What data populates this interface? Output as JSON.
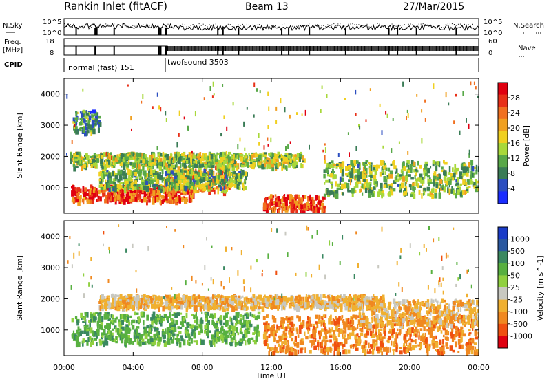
{
  "header": {
    "station": "Rankin Inlet (fitACF)",
    "beam": "Beam 13",
    "date": "27/Mar/2015"
  },
  "top_panels": {
    "nsky_label": "N.Sky",
    "nsearch_label": "N.Search",
    "freq_label_line1": "Freq.",
    "freq_label_line2": "[MHz]",
    "nave_label": "Nave",
    "cpid_label": "CPID",
    "noise_ticks_left": [
      "10^5",
      "10^0"
    ],
    "noise_ticks_right": [
      "10^5",
      "10^0"
    ],
    "freq_ticks": [
      "18",
      "8"
    ],
    "nave_ticks": [
      "60",
      "0"
    ],
    "cpid_segments": [
      {
        "label": "normal (fast) 151",
        "start_hour": 0.0,
        "end_hour": 6.0
      },
      {
        "label": "twofsound 3503",
        "start_hour": 6.0,
        "end_hour": 24.0
      }
    ]
  },
  "x_axis": {
    "label": "Time UT",
    "ticks": [
      "00:00",
      "04:00",
      "08:00",
      "12:00",
      "16:00",
      "20:00",
      "00:00"
    ],
    "range_hours": [
      0,
      24
    ]
  },
  "chart_data": [
    {
      "type": "heatmap",
      "ylabel": "Slant Range [km]",
      "yticks": [
        "1000",
        "2000",
        "3000",
        "4000"
      ],
      "ylim": [
        180,
        4500
      ],
      "colorbar_label": "Power [dB]",
      "colorbar_ticks": [
        "4",
        "8",
        "12",
        "16",
        "20",
        "24",
        "28"
      ],
      "colorbar_range": [
        0,
        32
      ],
      "colorbar_colors": [
        "#1a2cff",
        "#2c4ec0",
        "#3a7c56",
        "#58a848",
        "#a8d83a",
        "#f0d020",
        "#f0a020",
        "#f07020",
        "#e83018",
        "#e00010"
      ],
      "bands": [
        {
          "name": "near",
          "range_lo_km": 600,
          "range_hi_km": 1100,
          "start_hour": 0.4,
          "end_hour": 7.5,
          "level_db": 26
        },
        {
          "name": "near-mid",
          "range_lo_km": 900,
          "range_hi_km": 1700,
          "start_hour": 5.8,
          "end_hour": 9.5,
          "level_db": 22
        },
        {
          "name": "upper",
          "range_lo_km": 1700,
          "range_hi_km": 2150,
          "start_hour": 0.3,
          "end_hour": 13.8,
          "level_db": 14
        },
        {
          "name": "mid",
          "range_lo_km": 1000,
          "range_hi_km": 1600,
          "start_hour": 2.0,
          "end_hour": 10.5,
          "level_db": 12
        },
        {
          "name": "low-late",
          "range_lo_km": 300,
          "range_hi_km": 800,
          "start_hour": 11.5,
          "end_hour": 15.0,
          "level_db": 26
        },
        {
          "name": "late",
          "range_lo_km": 800,
          "range_hi_km": 1900,
          "start_hour": 15.0,
          "end_hour": 24.0,
          "level_db": 13
        },
        {
          "name": "sporadic-high",
          "range_lo_km": 2800,
          "range_hi_km": 3500,
          "start_hour": 0.5,
          "end_hour": 2.0,
          "level_db": 10
        }
      ]
    },
    {
      "type": "heatmap",
      "ylabel": "Slant Range [km]",
      "yticks": [
        "1000",
        "2000",
        "3000",
        "4000"
      ],
      "ylim": [
        180,
        4500
      ],
      "colorbar_label": "Velocity [m s^-1]",
      "colorbar_ticks": [
        "1000",
        "500",
        "100",
        "50",
        "25",
        "-25",
        "-100",
        "-500",
        "-1000"
      ],
      "colorbar_colors": [
        "#1a3cc8",
        "#2a58a0",
        "#3a8860",
        "#58b040",
        "#90d040",
        "#c8c8c0",
        "#f0b030",
        "#f08820",
        "#f05010",
        "#e00010"
      ],
      "bands": [
        {
          "name": "near",
          "range_lo_km": 600,
          "range_hi_km": 1600,
          "start_hour": 0.4,
          "end_hour": 11.2,
          "velocity_class": "100"
        },
        {
          "name": "upper-grey",
          "range_lo_km": 1750,
          "range_hi_km": 2150,
          "start_hour": 2.0,
          "end_hour": 18.5,
          "velocity_class": "-25"
        },
        {
          "name": "late-orange",
          "range_lo_km": 300,
          "range_hi_km": 1500,
          "start_hour": 11.5,
          "end_hour": 24.0,
          "velocity_class": "-100"
        },
        {
          "name": "late-grey",
          "range_lo_km": 1200,
          "range_hi_km": 2000,
          "start_hour": 17.0,
          "end_hour": 24.0,
          "velocity_class": "-25"
        }
      ]
    }
  ]
}
